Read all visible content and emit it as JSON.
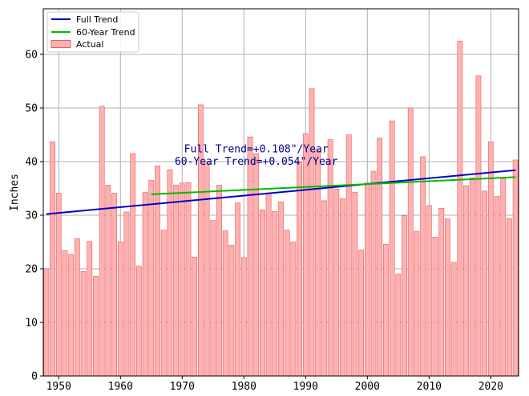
{
  "chart_data": {
    "type": "bar",
    "title": "",
    "xlabel": "",
    "ylabel": "Inches",
    "xlim": [
      1947.5,
      2024.5
    ],
    "ylim": [
      0,
      68.5
    ],
    "xticks": [
      1950,
      1960,
      1970,
      1980,
      1990,
      2000,
      2010,
      2020
    ],
    "yticks": [
      0,
      10,
      20,
      30,
      40,
      50,
      60
    ],
    "grid": true,
    "legend_position": "top-left",
    "x": [
      1948,
      1949,
      1950,
      1951,
      1952,
      1953,
      1954,
      1955,
      1956,
      1957,
      1958,
      1959,
      1960,
      1961,
      1962,
      1963,
      1964,
      1965,
      1966,
      1967,
      1968,
      1969,
      1970,
      1971,
      1972,
      1973,
      1974,
      1975,
      1976,
      1977,
      1978,
      1979,
      1980,
      1981,
      1982,
      1983,
      1984,
      1985,
      1986,
      1987,
      1988,
      1989,
      1990,
      1991,
      1992,
      1993,
      1994,
      1995,
      1996,
      1997,
      1998,
      1999,
      2000,
      2001,
      2002,
      2003,
      2004,
      2005,
      2006,
      2007,
      2008,
      2009,
      2010,
      2011,
      2012,
      2013,
      2014,
      2015,
      2016,
      2017,
      2018,
      2019,
      2020,
      2021,
      2022,
      2023,
      2024
    ],
    "series": [
      {
        "name": "Actual",
        "kind": "bar",
        "color": "#ffb0b0",
        "edge_color": "#e06060",
        "values": [
          20.0,
          43.7,
          34.1,
          23.4,
          22.7,
          25.6,
          19.5,
          25.1,
          18.6,
          50.3,
          35.6,
          34.1,
          25.0,
          30.6,
          41.5,
          20.5,
          34.3,
          36.5,
          39.2,
          27.2,
          38.5,
          35.6,
          36.0,
          36.1,
          22.2,
          50.6,
          40.0,
          29.0,
          35.6,
          27.1,
          24.4,
          32.3,
          22.1,
          44.6,
          41.5,
          31.0,
          34.1,
          30.7,
          32.5,
          27.2,
          25.0,
          40.0,
          45.2,
          53.6,
          42.1,
          32.7,
          44.1,
          34.9,
          33.1,
          45.0,
          34.3,
          23.5,
          36.0,
          38.2,
          44.4,
          24.6,
          47.6,
          19.0,
          29.9,
          50.0,
          27.0,
          40.9,
          31.8,
          25.9,
          31.3,
          29.3,
          21.2,
          62.5,
          35.5,
          37.0,
          56.0,
          34.5,
          43.7,
          33.5,
          36.8,
          29.4,
          40.3
        ]
      },
      {
        "name": "Full Trend",
        "kind": "line",
        "color": "#0000cd",
        "x": [
          1948,
          2024
        ],
        "values": [
          30.2,
          38.4
        ]
      },
      {
        "name": "60-Year Trend",
        "kind": "line",
        "color": "#00bb00",
        "x": [
          1965,
          2024
        ],
        "values": [
          33.9,
          37.1
        ]
      }
    ],
    "annotations": [
      {
        "text": "Full Trend=+0.108\"/Year",
        "x": 1982,
        "y": 42.3
      },
      {
        "text": "60-Year Trend=+0.054\"/Year",
        "x": 1982,
        "y": 40.0
      }
    ]
  }
}
